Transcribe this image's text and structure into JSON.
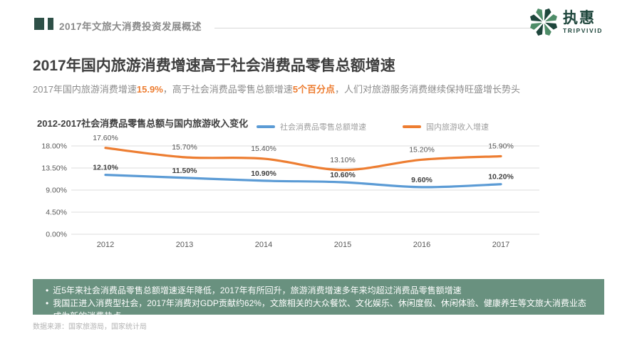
{
  "header": {
    "section_title": "2017年文旅大消费投资发展概述",
    "logo_cn": "执惠",
    "logo_en": "TRIPVIVID",
    "logo_color_dark": "#1E463C",
    "logo_color_mid": "#4E8C68"
  },
  "page": {
    "title": "2017年国内旅游消费增速高于社会消费品零售总额增速"
  },
  "subtitle": {
    "segments": [
      {
        "text": "2017年国内旅游消费增速",
        "highlight": false
      },
      {
        "text": "15.9%",
        "highlight": true
      },
      {
        "text": "，高于社会消费品零售总额增速",
        "highlight": false
      },
      {
        "text": "5个百分点",
        "highlight": true
      },
      {
        "text": "，人们对旅游服务消费继续保持旺盛增长势头",
        "highlight": false
      }
    ]
  },
  "chart_data": {
    "type": "line",
    "title": "2012-2017社会消费品零售总额与国内旅游收入变化",
    "categories": [
      "2012",
      "2013",
      "2014",
      "2015",
      "2016",
      "2017"
    ],
    "series": [
      {
        "name": "社会消费品零售总额增速",
        "color": "#5B9BD5",
        "values": [
          12.1,
          11.5,
          10.9,
          10.6,
          9.6,
          10.2
        ],
        "labels": [
          "12.10%",
          "11.50%",
          "10.90%",
          "10.60%",
          "9.60%",
          "10.20%"
        ],
        "label_bold": true
      },
      {
        "name": "国内旅游收入增速",
        "color": "#ED7D31",
        "values": [
          17.6,
          15.7,
          15.4,
          13.1,
          15.2,
          15.9
        ],
        "labels": [
          "17.60%",
          "15.70%",
          "15.40%",
          "13.10%",
          "15.20%",
          "15.90%"
        ],
        "label_bold": false
      }
    ],
    "y_ticks": [
      {
        "value": 0,
        "label": "0.00%"
      },
      {
        "value": 4.5,
        "label": "4.50%"
      },
      {
        "value": 9,
        "label": "9.00%"
      },
      {
        "value": 13.5,
        "label": "13.50%"
      },
      {
        "value": 18,
        "label": "18.00%"
      }
    ],
    "ylim": [
      0,
      18
    ],
    "grid": true,
    "legend_position": "top",
    "line_style": "smooth"
  },
  "summary": {
    "bullets": [
      "近5年来社会消费品零售总额增速逐年降低，2017年有所回升，旅游消费增速多年来均超过消费品零售额增速",
      "我国正进入消费型社会，2017年消费对GDP贡献约62%，文旅相关的大众餐饮、文化娱乐、休闲度假、休闲体验、健康养生等文旅大消费业态成为新的消费热点"
    ],
    "background": "#69917F"
  },
  "source": "数据来源：国家旅游局，国家统计局",
  "colors": {
    "accent_orange": "#ED7D31",
    "accent_blue": "#5B9BD5",
    "brand_dark_green": "#2E5047"
  }
}
